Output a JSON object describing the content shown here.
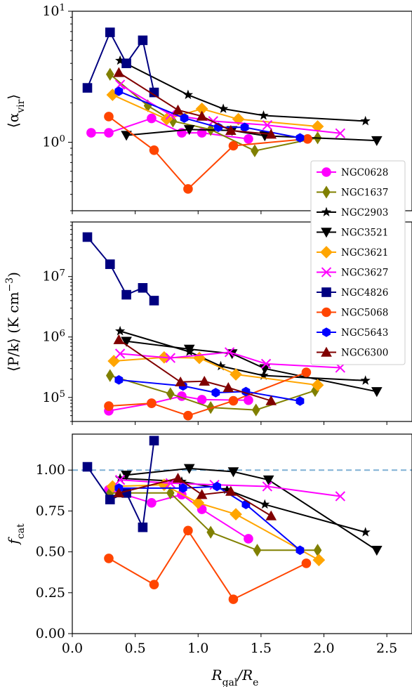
{
  "chart_data": {
    "type": "line",
    "xlabel_main": "R",
    "xlabel_sub": "gal",
    "xlabel_tail": "/R",
    "xlabel_tail_sub": "e",
    "xlim": [
      0.0,
      2.7
    ],
    "x_ticks": [
      "0.0",
      "0.5",
      "1.0",
      "1.5",
      "2.0",
      "2.5"
    ],
    "x_tick_values": [
      0.0,
      0.5,
      1.0,
      1.5,
      2.0,
      2.5
    ],
    "legend_placement": "right, spanning panels 1-2",
    "series_styles": [
      {
        "name": "NGC0628",
        "color": "#ff00ff",
        "marker": "circle"
      },
      {
        "name": "NGC1637",
        "color": "#808000",
        "marker": "thin-diamond"
      },
      {
        "name": "NGC2903",
        "color": "#000000",
        "marker": "star"
      },
      {
        "name": "NGC3521",
        "color": "#000000",
        "marker": "triangle-down"
      },
      {
        "name": "NGC3621",
        "color": "#ffa500",
        "marker": "diamond"
      },
      {
        "name": "NGC3627",
        "color": "#ff00ff",
        "marker": "x"
      },
      {
        "name": "NGC4826",
        "color": "#000080",
        "marker": "square"
      },
      {
        "name": "NGC5068",
        "color": "#ff4500",
        "marker": "circle"
      },
      {
        "name": "NGC5643",
        "color": "#0000ff",
        "marker": "hexagon"
      },
      {
        "name": "NGC6300",
        "color": "#800000",
        "marker": "triangle-up"
      }
    ],
    "panels": [
      {
        "id": "alpha",
        "ylabel": "⟨α_vir⟩",
        "ylabel_main": "⟨α",
        "ylabel_sub": "vir",
        "ylabel_tail": "⟩",
        "yscale": "log",
        "ylim": [
          0.3,
          10
        ],
        "y_ticks": [
          {
            "value": 1,
            "mantissa": "10",
            "exponent": "0"
          },
          {
            "value": 10,
            "mantissa": "10",
            "exponent": "1"
          }
        ],
        "series": [
          {
            "name": "NGC0628",
            "x": [
              0.15,
              0.29,
              0.63,
              0.87,
              1.03,
              1.4
            ],
            "y": [
              1.18,
              1.18,
              1.52,
              1.18,
              1.18,
              1.06
            ]
          },
          {
            "name": "NGC1637",
            "x": [
              0.3,
              0.6,
              0.8,
              1.1,
              1.45,
              1.95
            ],
            "y": [
              3.3,
              1.9,
              1.45,
              1.25,
              0.86,
              1.08
            ]
          },
          {
            "name": "NGC2903",
            "x": [
              0.38,
              0.92,
              1.2,
              1.52,
              2.33
            ],
            "y": [
              4.2,
              2.3,
              1.8,
              1.6,
              1.45
            ]
          },
          {
            "name": "NGC3521",
            "x": [
              0.43,
              0.93,
              1.27,
              1.53,
              2.42
            ],
            "y": [
              1.13,
              1.25,
              1.23,
              1.12,
              1.03
            ]
          },
          {
            "name": "NGC3621",
            "x": [
              0.32,
              0.75,
              1.03,
              1.32,
              1.95
            ],
            "y": [
              2.3,
              1.5,
              1.8,
              1.5,
              1.32
            ]
          },
          {
            "name": "NGC3627",
            "x": [
              0.38,
              0.78,
              1.12,
              1.55,
              2.13
            ],
            "y": [
              2.75,
              1.62,
              1.45,
              1.35,
              1.17
            ]
          },
          {
            "name": "NGC4826",
            "x": [
              0.12,
              0.3,
              0.43,
              0.56,
              0.65
            ],
            "y": [
              2.6,
              6.9,
              4.0,
              6.0,
              2.4
            ]
          },
          {
            "name": "NGC5068",
            "x": [
              0.29,
              0.65,
              0.92,
              1.28,
              1.87
            ],
            "y": [
              1.57,
              0.87,
              0.44,
              0.94,
              1.06
            ]
          },
          {
            "name": "NGC5643",
            "x": [
              0.37,
              0.89,
              1.16,
              1.37,
              1.81
            ],
            "y": [
              2.45,
              1.53,
              1.3,
              1.3,
              1.08
            ]
          },
          {
            "name": "NGC6300",
            "x": [
              0.37,
              0.84,
              1.03,
              1.26,
              1.58
            ],
            "y": [
              3.4,
              1.76,
              1.58,
              1.23,
              1.15
            ]
          }
        ]
      },
      {
        "id": "pressure",
        "ylabel": "⟨P/k⟩ (K cm⁻³)",
        "ylabel_main": "⟨P/k⟩ (K cm",
        "ylabel_sup": "−3",
        "ylabel_tail": ")",
        "yscale": "log",
        "ylim": [
          40000,
          80000000
        ],
        "y_ticks": [
          {
            "value": 100000,
            "mantissa": "10",
            "exponent": "5"
          },
          {
            "value": 1000000,
            "mantissa": "10",
            "exponent": "6"
          },
          {
            "value": 10000000,
            "mantissa": "10",
            "exponent": "7"
          }
        ],
        "series": [
          {
            "name": "NGC0628",
            "x": [
              0.29,
              0.63,
              0.87,
              1.03,
              1.4
            ],
            "y": [
              60000,
              80000,
              105000,
              92000,
              90000
            ]
          },
          {
            "name": "NGC1637",
            "x": [
              0.3,
              0.78,
              1.1,
              1.46,
              1.93
            ],
            "y": [
              230000,
              115000,
              68000,
              62000,
              130000
            ]
          },
          {
            "name": "NGC2903",
            "x": [
              0.38,
              0.93,
              1.18,
              1.52,
              2.33
            ],
            "y": [
              1250000,
              570000,
              330000,
              230000,
              190000
            ]
          },
          {
            "name": "NGC3521",
            "x": [
              0.43,
              0.93,
              1.27,
              1.53,
              2.42
            ],
            "y": [
              850000,
              630000,
              530000,
              300000,
              125000
            ]
          },
          {
            "name": "NGC3621",
            "x": [
              0.33,
              0.73,
              1.01,
              1.3,
              1.95
            ],
            "y": [
              400000,
              460000,
              450000,
              240000,
              160000
            ]
          },
          {
            "name": "NGC3627",
            "x": [
              0.38,
              0.78,
              1.25,
              1.54,
              2.13
            ],
            "y": [
              530000,
              450000,
              560000,
              360000,
              310000
            ]
          },
          {
            "name": "NGC4826",
            "x": [
              0.12,
              0.3,
              0.43,
              0.56,
              0.65
            ],
            "y": [
              45000000,
              16000000,
              5000000,
              6500000,
              4000000
            ]
          },
          {
            "name": "NGC5068",
            "x": [
              0.29,
              0.63,
              0.92,
              1.28,
              1.86
            ],
            "y": [
              72000,
              80000,
              50000,
              88000,
              260000
            ]
          },
          {
            "name": "NGC5643",
            "x": [
              0.37,
              0.88,
              1.14,
              1.38,
              1.81
            ],
            "y": [
              195000,
              155000,
              120000,
              125000,
              87000
            ]
          },
          {
            "name": "NGC6300",
            "x": [
              0.37,
              0.86,
              1.05,
              1.24,
              1.58
            ],
            "y": [
              900000,
              180000,
              185000,
              145000,
              88000
            ]
          }
        ]
      },
      {
        "id": "fcat",
        "ylabel": "f_cat",
        "ylabel_main": "f",
        "ylabel_sub": "cat",
        "yscale": "linear",
        "ylim": [
          0.0,
          1.22
        ],
        "y_ticks": [
          {
            "value": 0.0,
            "label": "0.00"
          },
          {
            "value": 0.25,
            "label": "0.25"
          },
          {
            "value": 0.5,
            "label": "0.50"
          },
          {
            "value": 0.75,
            "label": "0.75"
          },
          {
            "value": 1.0,
            "label": "1.00"
          }
        ],
        "reference_line": {
          "y": 1.0,
          "style": "dashed",
          "color": "#7fb0d5"
        },
        "series": [
          {
            "name": "NGC0628",
            "x": [
              0.29,
              0.63,
              0.87,
              1.03,
              1.4
            ],
            "y": [
              0.88,
              0.8,
              0.85,
              0.76,
              0.58
            ]
          },
          {
            "name": "NGC1637",
            "x": [
              0.3,
              0.78,
              1.1,
              1.47,
              1.95
            ],
            "y": [
              0.86,
              0.86,
              0.62,
              0.51,
              0.51
            ]
          },
          {
            "name": "NGC2903",
            "x": [
              0.38,
              0.87,
              1.23,
              1.53,
              2.33
            ],
            "y": [
              0.95,
              0.93,
              0.88,
              0.79,
              0.62
            ]
          },
          {
            "name": "NGC3521",
            "x": [
              0.43,
              0.93,
              1.28,
              1.56,
              2.42
            ],
            "y": [
              0.97,
              1.01,
              0.99,
              0.94,
              0.51
            ]
          },
          {
            "name": "NGC3621",
            "x": [
              0.32,
              0.73,
              1.0,
              1.3,
              1.96
            ],
            "y": [
              0.9,
              0.91,
              0.8,
              0.73,
              0.45
            ]
          },
          {
            "name": "NGC3627",
            "x": [
              0.38,
              0.78,
              1.13,
              1.55,
              2.13
            ],
            "y": [
              0.94,
              0.92,
              0.91,
              0.9,
              0.84
            ]
          },
          {
            "name": "NGC4826",
            "x": [
              0.12,
              0.3,
              0.43,
              0.56,
              0.65
            ],
            "y": [
              1.02,
              0.82,
              0.86,
              0.65,
              1.18
            ]
          },
          {
            "name": "NGC5068",
            "x": [
              0.29,
              0.65,
              0.92,
              1.28,
              1.86
            ],
            "y": [
              0.46,
              0.3,
              0.63,
              0.21,
              0.43
            ]
          },
          {
            "name": "NGC5643",
            "x": [
              0.37,
              0.88,
              1.15,
              1.38,
              1.81
            ],
            "y": [
              0.89,
              0.89,
              0.9,
              0.79,
              0.51
            ]
          },
          {
            "name": "NGC6300",
            "x": [
              0.37,
              0.84,
              1.03,
              1.26,
              1.58
            ],
            "y": [
              0.86,
              0.95,
              0.85,
              0.87,
              0.72
            ]
          }
        ]
      }
    ]
  }
}
